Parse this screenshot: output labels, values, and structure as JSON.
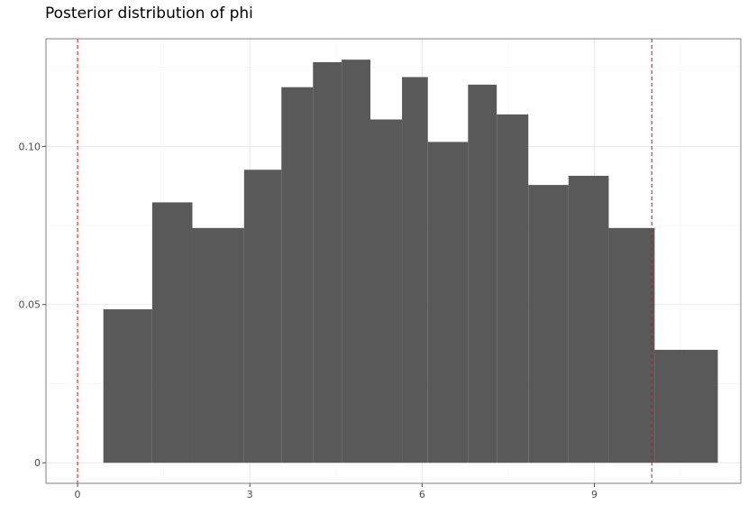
{
  "chart_data": {
    "type": "bar",
    "title": "Posterior distribution of phi",
    "xlabel": "",
    "ylabel": "",
    "xlim": [
      -0.55,
      11.55
    ],
    "ylim": [
      -0.0065,
      0.134
    ],
    "x_ticks": [
      0,
      3,
      6,
      9
    ],
    "x_tick_labels": [
      "0",
      "3",
      "6",
      "9"
    ],
    "y_ticks": [
      0,
      0.05,
      0.1
    ],
    "y_tick_labels": [
      "0",
      "0.05",
      "0.10"
    ],
    "grid": true,
    "bins": [
      {
        "start": 0.45,
        "end": 1.3,
        "value": 0.0485
      },
      {
        "start": 1.3,
        "end": 2.0,
        "value": 0.0823
      },
      {
        "start": 2.0,
        "end": 2.9,
        "value": 0.0742
      },
      {
        "start": 2.9,
        "end": 3.55,
        "value": 0.0926
      },
      {
        "start": 3.55,
        "end": 4.1,
        "value": 0.1187
      },
      {
        "start": 4.1,
        "end": 4.6,
        "value": 0.1266
      },
      {
        "start": 4.6,
        "end": 5.1,
        "value": 0.1274
      },
      {
        "start": 5.1,
        "end": 5.65,
        "value": 0.1085
      },
      {
        "start": 5.65,
        "end": 6.1,
        "value": 0.1219
      },
      {
        "start": 6.1,
        "end": 6.8,
        "value": 0.1014
      },
      {
        "start": 6.8,
        "end": 7.3,
        "value": 0.1195
      },
      {
        "start": 7.3,
        "end": 7.85,
        "value": 0.1101
      },
      {
        "start": 7.85,
        "end": 8.55,
        "value": 0.0878
      },
      {
        "start": 8.55,
        "end": 9.25,
        "value": 0.0907
      },
      {
        "start": 9.25,
        "end": 10.05,
        "value": 0.0742
      },
      {
        "start": 10.05,
        "end": 11.15,
        "value": 0.0357
      }
    ],
    "reference_lines": [
      {
        "x": 0,
        "color": "#ff0000",
        "style": "dashed"
      },
      {
        "x": 10,
        "color": "#ff0000",
        "style": "dashed"
      }
    ],
    "colors": {
      "bar_fill": "#595959",
      "grid_major": "#ebebeb",
      "grid_minor": "#f5f5f5",
      "panel_border": "#7f7f7f",
      "axis_text": "#4d4d4d"
    }
  }
}
